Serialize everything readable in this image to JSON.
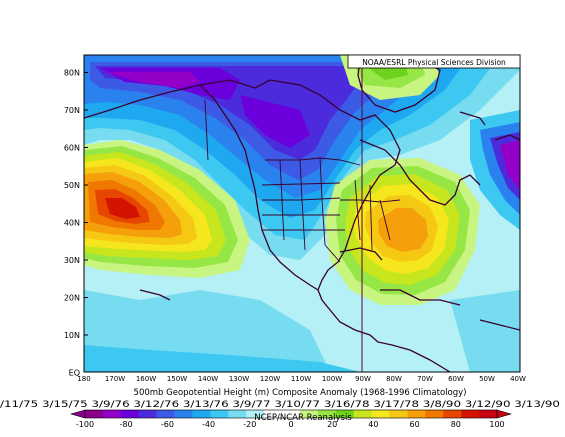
{
  "credit": "NOAA/ESRL Physical Sciences Division",
  "lat_labels": [
    "80N",
    "70N",
    "60N",
    "50N",
    "40N",
    "30N",
    "20N",
    "10N",
    "EQ"
  ],
  "lon_labels": [
    "180",
    "170W",
    "160W",
    "150W",
    "140W",
    "130W",
    "120W",
    "110W",
    "100W",
    "90W",
    "80W",
    "70W",
    "60W",
    "50W",
    "40W"
  ],
  "title": "500mb Geopotential Height (m) Composite Anomaly (1968-1996 Climatology)",
  "dates": "/11/75 3/15/75 3/9/76 3/12/76 3/13/76 3/9/77 3/10/77 3/16/78 3/17/78 3/8/90 3/12/90 3/13/90",
  "source": "NCEP/NCAR Reanalysis",
  "colorbar": {
    "labels": [
      "-100",
      "-80",
      "-60",
      "-40",
      "-20",
      "0",
      "20",
      "40",
      "60",
      "80",
      "100"
    ],
    "colors": [
      "#8b008b",
      "#9400c8",
      "#6b00dc",
      "#4b2bdc",
      "#3c5ae6",
      "#2a82ee",
      "#1ea8f0",
      "#3cc8f0",
      "#78dcf0",
      "#b4f0f5",
      "#ffffff",
      "#ffffff",
      "#c8f582",
      "#96e646",
      "#6ed21e",
      "#c8e61e",
      "#f5e61e",
      "#f5c814",
      "#f5a00a",
      "#f07800",
      "#e64600",
      "#d21400",
      "#c80014"
    ]
  }
}
